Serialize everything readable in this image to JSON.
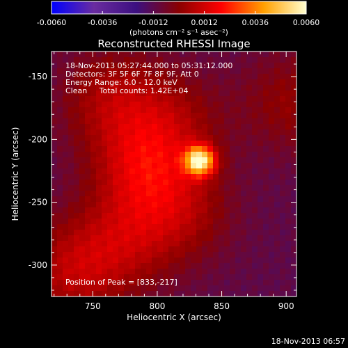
{
  "chart_data": {
    "type": "heatmap",
    "title": "Reconstructed RHESSI Image",
    "xlabel": "Heliocentric X (arcsec)",
    "ylabel": "Heliocentric Y (arcsec)",
    "xlim": [
      718,
      908
    ],
    "ylim": [
      -325,
      -130
    ],
    "xticks": [
      750,
      800,
      850,
      900
    ],
    "yticks": [
      -150,
      -200,
      -250,
      -300
    ],
    "grid": false,
    "colorbar": {
      "placement": "top",
      "range": [
        -0.006,
        0.006
      ],
      "ticks": [
        "-0.0060",
        "-0.0036",
        "-0.0012",
        "0.0012",
        "0.0036",
        "0.0060"
      ],
      "unit_label": "(photons cm⁻² s⁻¹ asec⁻²)",
      "colors": [
        "#0000ff",
        "#6a2ca0",
        "#3c1080",
        "#8a0000",
        "#ff0000",
        "#ffa000",
        "#ffffd0"
      ]
    },
    "annotations": {
      "time_range": "18-Nov-2013 05:27:44.000 to 05:31:12.000",
      "detectors": "Detectors: 3F 5F 6F 7F 8F 9F, Att 0",
      "energy_range": "Energy Range: 6.0 - 12.0 keV",
      "clean_counts": "Clean     Total counts: 1.42E+04",
      "peak_position": "Position of Peak = [833,-217]"
    },
    "peak": {
      "x": 833,
      "y": -217,
      "value": 0.006
    },
    "source_components": [
      {
        "x": 833,
        "y": -217,
        "value": 0.0062
      },
      {
        "x": 790,
        "y": -222,
        "value": 0.0022
      },
      {
        "x": 765,
        "y": -168,
        "value": 0.0016
      },
      {
        "x": 775,
        "y": -280,
        "value": 0.0015
      },
      {
        "x": 735,
        "y": -305,
        "value": 0.0018
      },
      {
        "x": 818,
        "y": -258,
        "value": 0.0014
      },
      {
        "x": 812,
        "y": -185,
        "value": 0.0012
      },
      {
        "x": 905,
        "y": -170,
        "value": 0.0012
      }
    ],
    "background_value": -0.0011
  },
  "footer": {
    "timestamp": "18-Nov-2013 06:57"
  },
  "colors": {
    "background": "#000000",
    "axis": "#ffffff",
    "background_emission": "#3c1080",
    "peak": "#ffffd0"
  }
}
